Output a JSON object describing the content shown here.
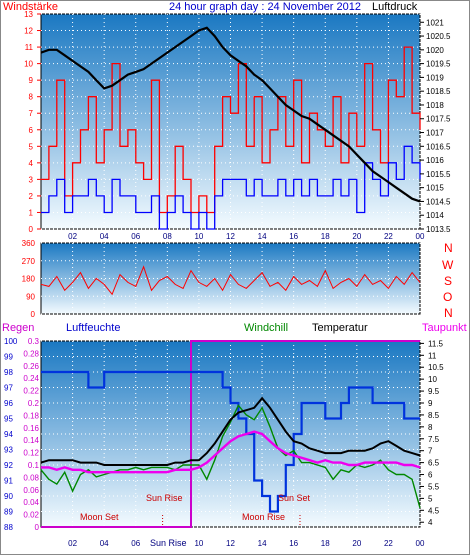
{
  "header": {
    "left_label": "Windstärke",
    "title": "24 hour graph day : 24 November 2012",
    "right_label": "Luftdruck"
  },
  "wind_direction_labels": [
    "N",
    "W",
    "S",
    "O",
    "N"
  ],
  "humidity_panel": {
    "regen_label": "Regen",
    "luftfeuchte_label": "Luftfeuchte",
    "windchill_label": "Windchill",
    "temperatur_label": "Temperatur",
    "taupunkt_label": "Taupunkt",
    "annotations": {
      "moon_set": "Moon Set",
      "sun_rise": "Sun Rise",
      "sun_set": "Sun Set",
      "moon_rise": "Moon Rise",
      "sun_rise_axis": "Sun Rise"
    }
  },
  "colors": {
    "wind_red": "#ff0000",
    "wind_blue": "#0000ff",
    "pressure_black": "#000000",
    "humidity_blue": "#0033dd",
    "windchill_green": "#008800",
    "temperature_black": "#000000",
    "dewpoint_magenta": "#ee00ee",
    "sky_top": "#1a78c2",
    "sky_bottom": "#f4fbff"
  },
  "chart_data": [
    {
      "type": "line",
      "name": "wind-pressure",
      "x": [
        0,
        0.5,
        1,
        1.5,
        2,
        2.5,
        3,
        3.5,
        4,
        4.5,
        5,
        5.5,
        6,
        6.5,
        7,
        7.5,
        8,
        8.5,
        9,
        9.5,
        10,
        10.5,
        11,
        11.5,
        12,
        12.5,
        13,
        13.5,
        14,
        14.5,
        15,
        15.5,
        16,
        16.5,
        17,
        17.5,
        18,
        18.5,
        19,
        19.5,
        20,
        20.5,
        21,
        21.5,
        22,
        22.5,
        23,
        23.5,
        24
      ],
      "x_ticks": [
        "02",
        "04",
        "06",
        "08",
        "10",
        "12",
        "14",
        "16",
        "18",
        "20",
        "22",
        "00"
      ],
      "y_left_ticks": [
        0,
        1,
        2,
        3,
        4,
        5,
        6,
        7,
        8,
        9,
        10,
        11,
        12,
        13
      ],
      "ylim_left": [
        0,
        13
      ],
      "y_right_ticks": [
        1013.5,
        1014,
        1014.5,
        1015,
        1015.5,
        1016,
        1016.5,
        1017,
        1017.5,
        1018,
        1018.5,
        1019,
        1019.5,
        1020,
        1020.5,
        1021
      ],
      "ylim_right": [
        1013.5,
        1021.3
      ],
      "series": [
        {
          "name": "Luftdruck",
          "axis": "right",
          "values": [
            1019.9,
            1020.0,
            1020.0,
            1019.8,
            1019.6,
            1019.4,
            1019.2,
            1018.9,
            1018.6,
            1018.7,
            1018.9,
            1019.1,
            1019.2,
            1019.3,
            1019.5,
            1019.7,
            1019.9,
            1020.1,
            1020.3,
            1020.5,
            1020.7,
            1020.8,
            1020.5,
            1020.1,
            1019.8,
            1019.6,
            1019.4,
            1019.1,
            1018.9,
            1018.6,
            1018.3,
            1018.0,
            1017.8,
            1017.6,
            1017.5,
            1017.3,
            1017.1,
            1016.9,
            1016.7,
            1016.5,
            1016.2,
            1015.9,
            1015.6,
            1015.4,
            1015.2,
            1015.0,
            1014.8,
            1014.6,
            1014.5
          ]
        },
        {
          "name": "Windstärke",
          "axis": "left",
          "values": [
            3,
            5,
            9,
            2,
            4,
            6,
            8,
            4,
            6,
            10,
            5,
            6,
            4,
            3,
            9,
            1,
            2,
            5,
            3,
            1,
            2,
            1,
            5,
            8,
            7,
            10,
            5,
            8,
            4,
            6,
            8,
            5,
            9,
            4,
            7,
            6,
            5,
            8,
            4,
            7,
            5,
            10,
            6,
            4,
            9,
            8,
            11,
            7,
            6
          ]
        },
        {
          "name": "Windböen",
          "axis": "left",
          "values": [
            1,
            2,
            3,
            1,
            2,
            2,
            3,
            2,
            1,
            3,
            2,
            2,
            1,
            1,
            2,
            0,
            1,
            2,
            1,
            0,
            1,
            0,
            2,
            3,
            3,
            3,
            2,
            3,
            2,
            2,
            3,
            2,
            3,
            2,
            3,
            2,
            2,
            3,
            2,
            3,
            1,
            4,
            3,
            2,
            4,
            3,
            5,
            4,
            3
          ]
        }
      ]
    },
    {
      "type": "line",
      "name": "wind-direction",
      "y_ticks": [
        0,
        90,
        180,
        270,
        360
      ],
      "ylim": [
        0,
        360
      ],
      "series": [
        {
          "name": "Windrichtung",
          "values": [
            150,
            140,
            190,
            120,
            160,
            210,
            130,
            180,
            150,
            100,
            200,
            160,
            140,
            240,
            120,
            170,
            190,
            150,
            130,
            220,
            160,
            140,
            180,
            120,
            200,
            150,
            130,
            170,
            210,
            140,
            160,
            120,
            190,
            150,
            170,
            140,
            220,
            130,
            160,
            180,
            140,
            200,
            150,
            170,
            130,
            190,
            150,
            210,
            160
          ]
        }
      ]
    },
    {
      "type": "line",
      "name": "humidity-temperature",
      "x_ticks": [
        "02",
        "04",
        "06",
        "08",
        "10",
        "12",
        "14",
        "16",
        "18",
        "20",
        "22",
        "00"
      ],
      "y_humidity_ticks": [
        88,
        89,
        90,
        91,
        92,
        93,
        94,
        95,
        96,
        97,
        98,
        99,
        100
      ],
      "ylim_humidity": [
        88,
        100
      ],
      "y_rain_ticks": [
        0,
        0.02,
        0.04,
        0.06,
        0.08,
        0.1,
        0.12,
        0.14,
        0.16,
        0.18,
        0.2,
        0.22,
        0.24,
        0.26,
        0.28,
        0.3
      ],
      "ylim_rain": [
        0,
        0.3
      ],
      "y_temp_ticks": [
        4,
        4.5,
        5,
        5.5,
        6,
        6.5,
        7,
        7.5,
        8,
        8.5,
        9,
        9.5,
        10,
        10.5,
        11,
        11.5
      ],
      "ylim_temp": [
        3.8,
        11.6
      ],
      "series": [
        {
          "name": "Luftfeuchte",
          "axis": "humidity",
          "values": [
            98,
            98,
            98,
            98,
            98,
            98,
            97,
            97,
            98,
            98,
            98,
            98,
            98,
            98,
            98,
            98,
            98,
            98,
            98,
            98,
            98,
            98,
            98,
            97,
            96,
            95,
            94,
            91,
            90,
            89,
            90,
            92,
            94,
            96,
            96,
            96,
            95,
            95,
            96,
            97,
            97,
            97,
            96,
            96,
            96,
            96,
            95,
            95,
            95
          ]
        },
        {
          "name": "Temperatur",
          "axis": "temp",
          "values": [
            6.5,
            6.6,
            6.6,
            6.6,
            6.6,
            6.5,
            6.5,
            6.5,
            6.4,
            6.4,
            6.4,
            6.4,
            6.4,
            6.4,
            6.4,
            6.4,
            6.4,
            6.5,
            6.5,
            6.6,
            6.6,
            6.9,
            7.3,
            7.8,
            8.3,
            8.6,
            8.7,
            8.8,
            9.2,
            8.8,
            8.3,
            7.8,
            7.4,
            7.3,
            7.1,
            7.0,
            6.9,
            6.9,
            6.9,
            7.0,
            7.0,
            7.0,
            7.1,
            7.3,
            7.4,
            7.2,
            7.0,
            6.9,
            6.8
          ]
        },
        {
          "name": "Windchill",
          "axis": "temp",
          "values": [
            6.2,
            5.8,
            5.6,
            6.1,
            5.3,
            6.0,
            6.2,
            5.9,
            6.0,
            6.1,
            6.2,
            6.2,
            6.3,
            6.2,
            6.3,
            6.3,
            6.3,
            6.2,
            6.4,
            6.4,
            6.4,
            5.8,
            6.6,
            7.6,
            8.2,
            8.9,
            8.5,
            8.3,
            8.8,
            8.0,
            7.1,
            6.8,
            7.0,
            6.5,
            6.5,
            6.4,
            6.3,
            5.8,
            6.2,
            6.1,
            6.4,
            6.3,
            6.4,
            6.6,
            6.2,
            6.0,
            6.0,
            5.8,
            4.6
          ]
        },
        {
          "name": "Taupunkt",
          "axis": "temp",
          "values": [
            6.3,
            6.3,
            6.2,
            6.3,
            6.2,
            6.2,
            6.1,
            6.1,
            6.1,
            6.1,
            6.1,
            6.1,
            6.1,
            6.1,
            6.1,
            6.1,
            6.1,
            6.2,
            6.2,
            6.2,
            6.3,
            6.5,
            6.8,
            7.1,
            7.4,
            7.6,
            7.7,
            7.8,
            7.7,
            7.4,
            7.1,
            6.9,
            6.8,
            6.7,
            6.6,
            6.5,
            6.6,
            6.5,
            6.5,
            6.4,
            6.4,
            6.5,
            6.5,
            6.5,
            6.5,
            6.5,
            6.4,
            6.4,
            6.3
          ]
        },
        {
          "name": "Regen",
          "axis": "rain",
          "values": [
            0,
            0,
            0,
            0,
            0,
            0,
            0,
            0,
            0,
            0,
            0,
            0,
            0,
            0,
            0,
            0,
            0,
            0,
            0,
            0.3,
            0.3,
            0.3,
            0.3,
            0.3,
            0.3,
            0.3,
            0.3,
            0.3,
            0.3,
            0.3,
            0.3,
            0.3,
            0.3,
            0.3,
            0.3,
            0.3,
            0.3,
            0.3,
            0.3,
            0.3,
            0.3,
            0.3,
            0.3,
            0.3,
            0.3,
            0.3,
            0.3,
            0.3,
            0.3
          ]
        }
      ]
    }
  ]
}
